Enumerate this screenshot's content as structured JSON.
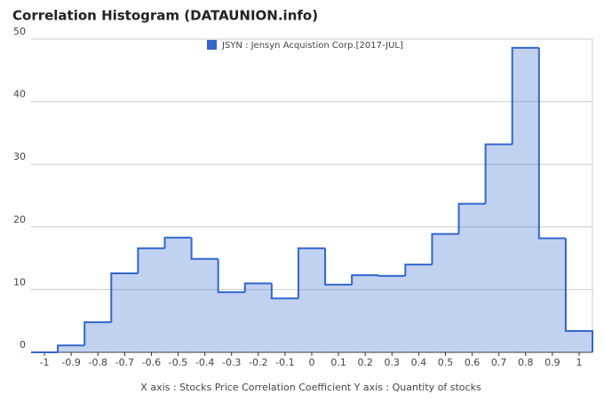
{
  "chart_data": {
    "type": "histogram",
    "title": "Correlation Histogram (DATAUNION.info)",
    "xlabel": "X axis : Stocks Price Correlation Coefficient  Y axis : Quantity of stocks",
    "series": [
      {
        "name": "JSYN : Jensyn Acquistion Corp.[2017-JUL]",
        "color": "#3366cc",
        "values": [
          0,
          1.1,
          4.8,
          12.6,
          16.6,
          18.3,
          14.9,
          9.6,
          11.0,
          8.6,
          16.6,
          10.8,
          12.3,
          12.2,
          14.0,
          18.9,
          23.7,
          33.2,
          48.6,
          18.2,
          3.4
        ]
      }
    ],
    "bins": [
      -1.05,
      -0.95,
      -0.85,
      -0.75,
      -0.65,
      -0.55,
      -0.45,
      -0.35,
      -0.25,
      -0.15,
      -0.05,
      0.05,
      0.15,
      0.25,
      0.35,
      0.45,
      0.55,
      0.65,
      0.75,
      0.85,
      0.95,
      1.05
    ],
    "xlim": [
      -1.05,
      1.05
    ],
    "xticks": [
      -1,
      -0.9,
      -0.8,
      -0.7,
      -0.6,
      -0.5,
      -0.4,
      -0.3,
      -0.2,
      -0.1,
      0,
      0.1,
      0.2,
      0.3,
      0.4,
      0.5,
      0.6,
      0.7,
      0.8,
      0.9,
      1
    ],
    "ylim": [
      0,
      50
    ],
    "yticks": [
      0,
      10,
      20,
      30,
      40,
      50
    ],
    "grid": true,
    "legend": "top"
  }
}
